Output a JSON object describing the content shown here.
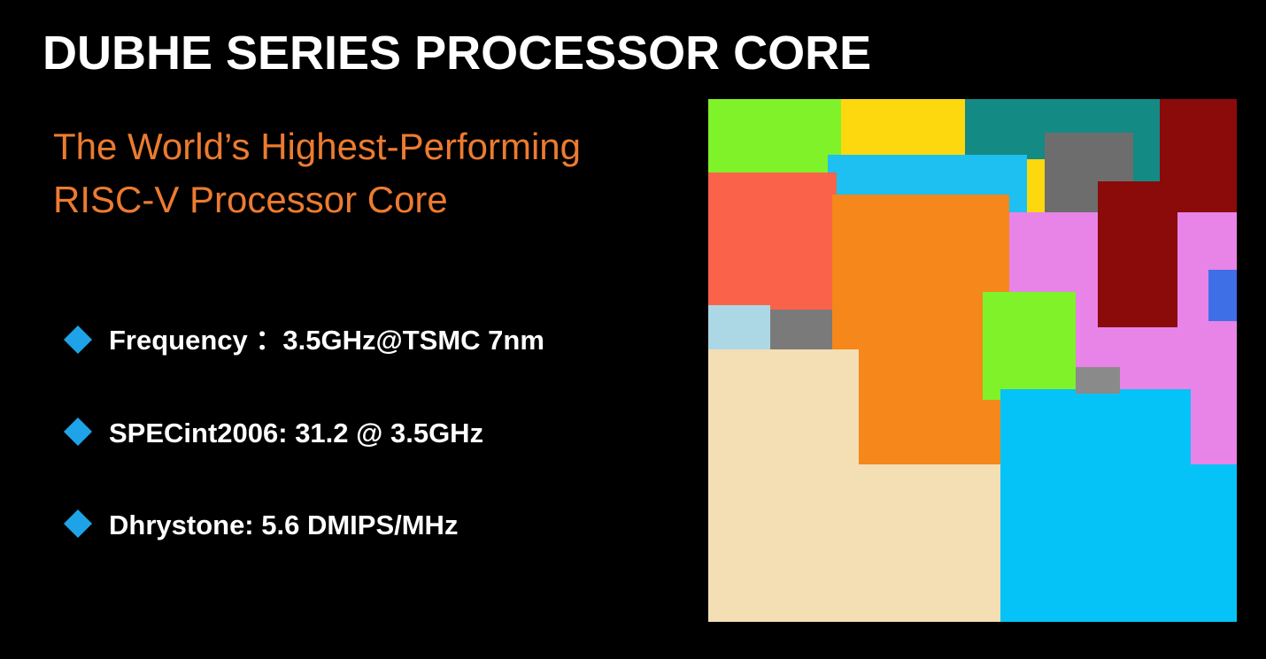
{
  "header": {
    "title": "DUBHE SERIES PROCESSOR CORE"
  },
  "subtitle": {
    "lines": [
      "The World’s Highest-Performing",
      "RISC-V Processor Core"
    ]
  },
  "bullets": [
    "Frequency ：3.5GHz@TSMC 7nm",
    "SPECint2006: 31.2 @ 3.5GHz",
    "Dhrystone: 5.6 DMIPS/MHz"
  ]
}
